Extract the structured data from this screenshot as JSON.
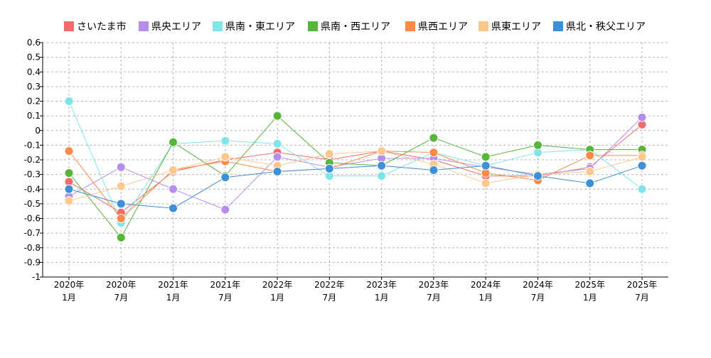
{
  "chart_data": {
    "type": "line",
    "title": "",
    "xlabel": "",
    "ylabel": "",
    "ylim": [
      -1,
      0.6
    ],
    "grid": true,
    "legend_position": "top",
    "categories": [
      [
        "2020年",
        "1月"
      ],
      [
        "2020年",
        "7月"
      ],
      [
        "2021年",
        "1月"
      ],
      [
        "2021年",
        "7月"
      ],
      [
        "2022年",
        "1月"
      ],
      [
        "2022年",
        "7月"
      ],
      [
        "2023年",
        "1月"
      ],
      [
        "2023年",
        "7月"
      ],
      [
        "2024年",
        "1月"
      ],
      [
        "2024年",
        "7月"
      ],
      [
        "2025年",
        "1月"
      ],
      [
        "2025年",
        "7月"
      ]
    ],
    "y_ticks": [
      "0.6",
      "0.5",
      "0.4",
      "0.3",
      "0.2",
      "0.1",
      "0",
      "-0.1",
      "-0.2",
      "-0.3",
      "-0.4",
      "-0.5",
      "-0.6",
      "-0.7",
      "-0.8",
      "-0.9",
      "-1"
    ],
    "y_tick_values": [
      0.6,
      0.5,
      0.4,
      0.3,
      0.2,
      0.1,
      0,
      -0.1,
      -0.2,
      -0.3,
      -0.4,
      -0.5,
      -0.6,
      -0.7,
      -0.8,
      -0.9,
      -1
    ],
    "series": [
      {
        "name": "さいたま市",
        "color": "#f36b6b",
        "values": [
          -0.35,
          -0.56,
          -0.28,
          -0.2,
          -0.15,
          -0.2,
          -0.14,
          -0.2,
          -0.31,
          -0.31,
          -0.25,
          0.04
        ]
      },
      {
        "name": "県央エリア",
        "color": "#b48ded",
        "values": [
          -0.45,
          -0.25,
          -0.4,
          -0.54,
          -0.18,
          -0.25,
          -0.19,
          -0.19,
          -0.25,
          -0.3,
          -0.26,
          0.09
        ]
      },
      {
        "name": "県南・東エリア",
        "color": "#7fe5e8",
        "values": [
          0.2,
          -0.63,
          -0.09,
          -0.07,
          -0.09,
          -0.31,
          -0.31,
          -0.15,
          -0.24,
          -0.15,
          -0.13,
          -0.4
        ]
      },
      {
        "name": "県南・西エリア",
        "color": "#56b63a",
        "values": [
          -0.29,
          -0.73,
          -0.08,
          -0.31,
          0.1,
          -0.22,
          -0.24,
          -0.05,
          -0.18,
          -0.1,
          -0.13,
          -0.13
        ]
      },
      {
        "name": "県西エリア",
        "color": "#fb8a46",
        "values": [
          -0.14,
          -0.6,
          -0.27,
          -0.21,
          -0.28,
          -0.26,
          -0.14,
          -0.15,
          -0.29,
          -0.34,
          -0.17,
          -0.17
        ]
      },
      {
        "name": "県東エリア",
        "color": "#fdc88e",
        "values": [
          -0.48,
          -0.38,
          -0.27,
          -0.18,
          -0.24,
          -0.16,
          -0.14,
          -0.23,
          -0.36,
          -0.3,
          -0.28,
          -0.18
        ]
      },
      {
        "name": "県北・秩父エリア",
        "color": "#3d8fd8",
        "values": [
          -0.4,
          -0.5,
          -0.53,
          -0.32,
          -0.28,
          -0.26,
          -0.24,
          -0.27,
          -0.24,
          -0.31,
          -0.36,
          -0.24
        ]
      }
    ]
  }
}
